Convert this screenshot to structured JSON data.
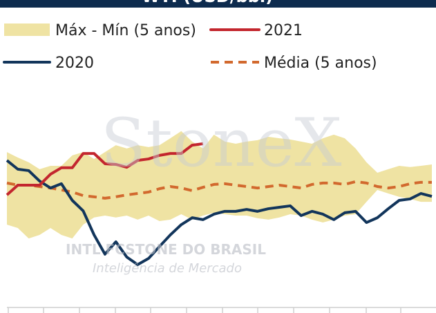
{
  "chart_data": {
    "type": "line",
    "title": "WTI (USD/bbl)",
    "watermark": [
      "StoneX",
      "INTL FCSTONE DO BRASIL",
      "Inteligência de Mercado"
    ],
    "categories": [
      null,
      null,
      null,
      null,
      null,
      null,
      null,
      null,
      null,
      null,
      null,
      null,
      null,
      null,
      null,
      null,
      null,
      null,
      null,
      null,
      null,
      null,
      null,
      null,
      null,
      null,
      null,
      null,
      null,
      null,
      null,
      null,
      null,
      null,
      null,
      null,
      null,
      null,
      null,
      null
    ],
    "ylim": [
      0,
      90
    ],
    "band": {
      "name": "Máx - Mín (5 anos)",
      "color": "#efe3a3",
      "upper": [
        65.3,
        63.0,
        61.0,
        58.1,
        59.5,
        59.5,
        63.9,
        65.3,
        62.4,
        65.3,
        68.2,
        66.8,
        68.2,
        67.4,
        68.2,
        71.1,
        74.1,
        69.7,
        66.8,
        72.6,
        69.7,
        68.8,
        69.7,
        70.3,
        71.7,
        71.1,
        70.6,
        69.7,
        68.8,
        71.1,
        72.6,
        71.1,
        66.8,
        61.0,
        56.6,
        58.1,
        59.5,
        59.0,
        59.5,
        60.1
      ],
      "lower": [
        34.8,
        33.4,
        29.0,
        30.5,
        33.4,
        30.5,
        29.0,
        34.8,
        37.8,
        38.6,
        37.8,
        38.6,
        36.9,
        38.6,
        36.3,
        36.9,
        39.2,
        36.9,
        38.6,
        39.8,
        39.2,
        38.6,
        38.6,
        37.5,
        36.9,
        37.8,
        39.2,
        38.6,
        36.9,
        35.7,
        36.9,
        38.6,
        39.2,
        44.4,
        49.4,
        47.9,
        46.5,
        45.6,
        44.4,
        44.4
      ]
    },
    "series": [
      {
        "name": "Média (5 anos)",
        "color": "#d2692e",
        "dash": true,
        "values": [
          52.3,
          51.4,
          51.4,
          50.8,
          50.2,
          49.4,
          48.5,
          47.0,
          46.5,
          45.9,
          46.5,
          47.3,
          47.9,
          48.5,
          49.9,
          50.8,
          50.2,
          49.1,
          50.5,
          51.7,
          52.0,
          51.4,
          50.8,
          50.2,
          50.8,
          51.4,
          50.8,
          50.2,
          51.7,
          52.3,
          52.3,
          51.7,
          52.9,
          52.3,
          50.8,
          50.2,
          50.8,
          52.0,
          52.6,
          52.6
        ]
      },
      {
        "name": "2020",
        "color": "#12355b",
        "values": [
          61.8,
          58.1,
          57.5,
          53.1,
          50.2,
          52.0,
          45.0,
          40.6,
          30.5,
          22.4,
          27.6,
          21.2,
          18.0,
          20.6,
          25.6,
          30.5,
          34.8,
          37.7,
          36.9,
          39.2,
          40.4,
          40.4,
          41.2,
          40.4,
          41.5,
          42.1,
          42.7,
          38.6,
          40.4,
          39.2,
          36.9,
          39.8,
          40.4,
          35.7,
          37.7,
          41.5,
          45.0,
          45.6,
          47.9,
          46.7
        ]
      },
      {
        "name": "2021",
        "color": "#c3262e",
        "values": [
          47.3,
          51.4,
          51.4,
          51.4,
          56.0,
          58.7,
          58.7,
          64.7,
          64.7,
          60.4,
          60.1,
          58.9,
          61.8,
          62.4,
          63.9,
          64.7,
          64.7,
          68.2,
          68.8,
          null,
          null,
          null,
          null,
          null,
          null,
          null,
          null,
          null,
          null,
          null,
          null,
          null,
          null,
          null,
          null,
          null,
          null,
          null,
          null,
          null
        ]
      }
    ]
  }
}
